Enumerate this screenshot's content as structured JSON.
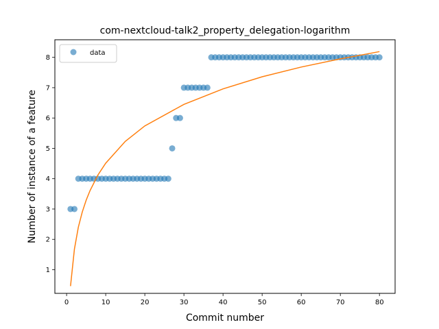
{
  "chart_data": {
    "type": "scatter",
    "title": "com-nextcloud-talk2_property_delegation-logarithm",
    "xlabel": "Commit number",
    "ylabel": "Number of instance of a feature",
    "xlim": [
      -3,
      84
    ],
    "ylim": [
      0.22,
      8.58
    ],
    "xticks": [
      0,
      10,
      20,
      30,
      40,
      50,
      60,
      70,
      80
    ],
    "yticks": [
      1,
      2,
      3,
      4,
      5,
      6,
      7,
      8
    ],
    "grid": false,
    "legend": {
      "placement": "top-left",
      "entries": [
        "data"
      ]
    },
    "colors": {
      "data": "#1f77b4",
      "fit": "#ff7f0e"
    },
    "series": [
      {
        "name": "data",
        "kind": "scatter",
        "x": [
          1,
          2,
          3,
          4,
          5,
          6,
          7,
          8,
          9,
          10,
          11,
          12,
          13,
          14,
          15,
          16,
          17,
          18,
          19,
          20,
          21,
          22,
          23,
          24,
          25,
          26,
          27,
          28,
          29,
          30,
          31,
          32,
          33,
          34,
          35,
          36,
          37,
          38,
          39,
          40,
          41,
          42,
          43,
          44,
          45,
          46,
          47,
          48,
          49,
          50,
          51,
          52,
          53,
          54,
          55,
          56,
          57,
          58,
          59,
          60,
          61,
          62,
          63,
          64,
          65,
          66,
          67,
          68,
          69,
          70,
          71,
          72,
          73,
          74,
          75,
          76,
          77,
          78,
          79,
          80
        ],
        "y": [
          3,
          3,
          4,
          4,
          4,
          4,
          4,
          4,
          4,
          4,
          4,
          4,
          4,
          4,
          4,
          4,
          4,
          4,
          4,
          4,
          4,
          4,
          4,
          4,
          4,
          4,
          5,
          6,
          6,
          7,
          7,
          7,
          7,
          7,
          7,
          7,
          8,
          8,
          8,
          8,
          8,
          8,
          8,
          8,
          8,
          8,
          8,
          8,
          8,
          8,
          8,
          8,
          8,
          8,
          8,
          8,
          8,
          8,
          8,
          8,
          8,
          8,
          8,
          8,
          8,
          8,
          8,
          8,
          8,
          8,
          8,
          8,
          8,
          8,
          8,
          8,
          8,
          8,
          8,
          8
        ]
      },
      {
        "kind": "line",
        "x": [
          1,
          2,
          3,
          4,
          5,
          6,
          8,
          10,
          15,
          20,
          30,
          40,
          50,
          60,
          70,
          80
        ],
        "y": [
          0.46,
          1.68,
          2.4,
          2.9,
          3.29,
          3.61,
          4.12,
          4.51,
          5.23,
          5.74,
          6.45,
          6.96,
          7.36,
          7.68,
          7.95,
          8.19
        ]
      }
    ]
  }
}
